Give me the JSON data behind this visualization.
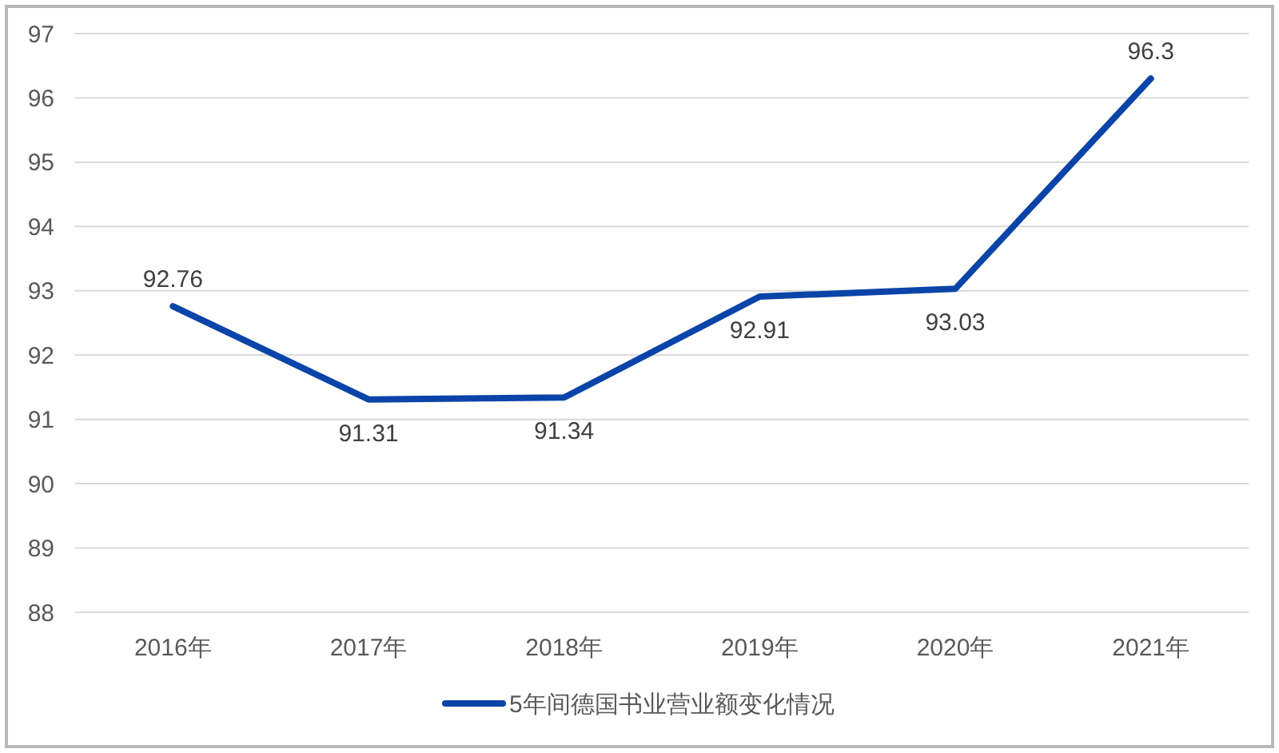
{
  "chart_data": {
    "type": "line",
    "categories": [
      "2016年",
      "2017年",
      "2018年",
      "2019年",
      "2020年",
      "2021年"
    ],
    "series": [
      {
        "name": "5年间德国书业营业额变化情况",
        "color": "#0a44a8",
        "values": [
          92.76,
          91.31,
          91.34,
          92.91,
          93.03,
          96.3
        ]
      }
    ],
    "ylim": [
      88,
      97
    ],
    "yticks": [
      88,
      89,
      90,
      91,
      92,
      93,
      94,
      95,
      96,
      97
    ],
    "grid": "y",
    "legend": "bottom",
    "data_labels": true,
    "line_style": "solid",
    "marker": "none"
  }
}
